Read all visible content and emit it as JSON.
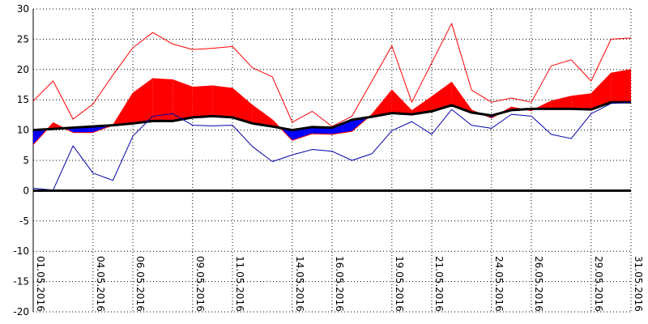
{
  "chart_data": {
    "type": "line",
    "title": "",
    "xlabel": "",
    "ylabel": "",
    "ylim": [
      -20,
      30
    ],
    "y_ticks": [
      30,
      25,
      20,
      15,
      10,
      5,
      0,
      -5,
      -10,
      -15,
      -20
    ],
    "grid": true,
    "x": [
      "01.05.2016",
      "02.05.2016",
      "03.05.2016",
      "04.05.2016",
      "05.05.2016",
      "06.05.2016",
      "07.05.2016",
      "08.05.2016",
      "09.05.2016",
      "10.05.2016",
      "11.05.2016",
      "12.05.2016",
      "13.05.2016",
      "14.05.2016",
      "15.05.2016",
      "16.05.2016",
      "17.05.2016",
      "18.05.2016",
      "19.05.2016",
      "20.05.2016",
      "21.05.2016",
      "22.05.2016",
      "23.05.2016",
      "24.05.2016",
      "25.05.2016",
      "26.05.2016",
      "27.05.2016",
      "28.05.2016",
      "29.05.2016",
      "30.05.2016",
      "31.05.2016"
    ],
    "x_tick_labels": [
      "01.05.2016",
      "04.05.2016",
      "06.05.2016",
      "09.05.2016",
      "11.05.2016",
      "14.05.2016",
      "16.05.2016",
      "19.05.2016",
      "21.05.2016",
      "24.05.2016",
      "26.05.2016",
      "29.05.2016",
      "31.05.2016"
    ],
    "series": [
      {
        "role": "max",
        "color": "#ff0000",
        "values": [
          14.8,
          18.1,
          11.8,
          14.3,
          19.1,
          23.6,
          26.1,
          24.2,
          23.3,
          23.5,
          23.8,
          20.3,
          18.8,
          11.3,
          13.1,
          10.6,
          12.3,
          18.1,
          23.9,
          14.6,
          21.1,
          27.6,
          16.6,
          14.6,
          15.3,
          14.6,
          20.6,
          21.6,
          18.1,
          25.0,
          25.2
        ]
      },
      {
        "role": "mean",
        "color": "#ff0000",
        "values": [
          7.6,
          11.2,
          9.6,
          9.6,
          10.8,
          16.1,
          18.5,
          18.3,
          17.1,
          17.3,
          16.9,
          14.1,
          11.7,
          8.3,
          9.4,
          9.3,
          9.8,
          12.6,
          16.6,
          13.2,
          15.5,
          17.9,
          13.3,
          12.0,
          13.8,
          13.2,
          14.8,
          15.6,
          16.0,
          19.4,
          20.0
        ]
      },
      {
        "role": "normal",
        "color": "#000000",
        "values": [
          10.0,
          10.2,
          10.4,
          10.6,
          10.8,
          11.1,
          11.5,
          11.5,
          12.1,
          12.3,
          12.1,
          11.1,
          10.6,
          10.0,
          10.5,
          10.4,
          11.7,
          12.2,
          12.8,
          12.6,
          13.1,
          14.1,
          12.9,
          12.4,
          13.3,
          13.5,
          13.5,
          13.5,
          13.4,
          14.6,
          14.6
        ]
      },
      {
        "role": "min",
        "color": "#0000aa",
        "values": [
          0.4,
          0.1,
          7.4,
          2.9,
          1.7,
          9.0,
          12.3,
          12.7,
          10.8,
          10.7,
          10.8,
          7.3,
          4.8,
          5.9,
          6.8,
          6.5,
          5.0,
          6.1,
          9.9,
          11.4,
          9.3,
          13.4,
          10.8,
          10.3,
          12.6,
          12.3,
          9.3,
          8.6,
          12.7,
          14.4,
          14.6
        ]
      }
    ],
    "colors": {
      "above_normal_fill": "#ff0000",
      "below_normal_fill": "#0000ff",
      "zero_line": "#000000",
      "grid": "#000000"
    }
  }
}
